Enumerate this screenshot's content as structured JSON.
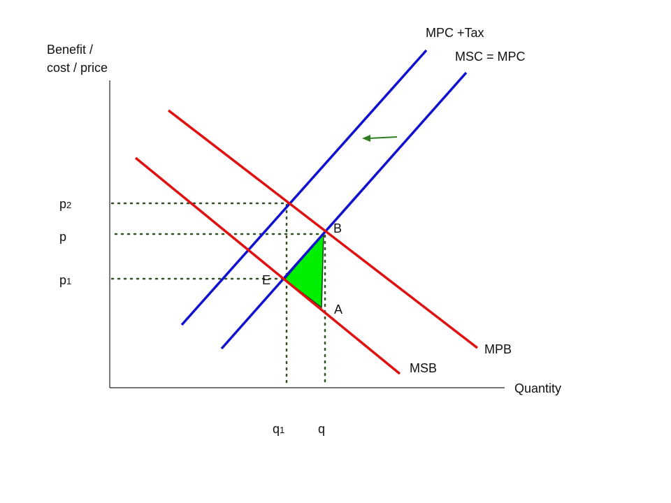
{
  "axes": {
    "y_label": [
      "Benefit /",
      "cost / price"
    ],
    "x_label": "Quantity"
  },
  "curves": [
    "MPC +Tax",
    "MSC = MPC",
    "MPB",
    "MSB"
  ],
  "points": [
    "B",
    "E",
    "A"
  ],
  "price_labels": [
    {
      "main": "p",
      "sub": "2"
    },
    {
      "main": "p"
    },
    {
      "main": "p",
      "sub": "1"
    }
  ],
  "quantity_labels": [
    {
      "main": "q",
      "sub": "1"
    },
    {
      "main": "q"
    }
  ]
}
